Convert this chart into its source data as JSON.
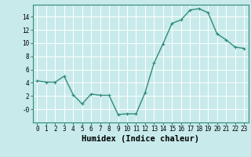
{
  "x": [
    0,
    1,
    2,
    3,
    4,
    5,
    6,
    7,
    8,
    9,
    10,
    11,
    12,
    13,
    14,
    15,
    16,
    17,
    18,
    19,
    20,
    21,
    22,
    23
  ],
  "y": [
    4.3,
    4.1,
    4.1,
    5.0,
    2.2,
    0.8,
    2.3,
    2.1,
    2.1,
    -0.8,
    -0.7,
    -0.7,
    2.5,
    7.0,
    9.9,
    13.0,
    13.5,
    15.0,
    15.2,
    14.6,
    11.4,
    10.5,
    9.4,
    9.2
  ],
  "line_color": "#2e8b7a",
  "marker": "+",
  "markersize": 3,
  "linewidth": 1.0,
  "background_color": "#c8eaea",
  "grid_color": "#ffffff",
  "xlabel": "Humidex (Indice chaleur)",
  "xlabel_fontsize": 7.5,
  "xlim": [
    -0.5,
    23.5
  ],
  "ylim": [
    -2.0,
    15.8
  ],
  "yticks": [
    0,
    2,
    4,
    6,
    8,
    10,
    12,
    14
  ],
  "ytick_labels": [
    "-0",
    "2",
    "4",
    "6",
    "8",
    "10",
    "12",
    "14"
  ],
  "xticks": [
    0,
    1,
    2,
    3,
    4,
    5,
    6,
    7,
    8,
    9,
    10,
    11,
    12,
    13,
    14,
    15,
    16,
    17,
    18,
    19,
    20,
    21,
    22,
    23
  ],
  "xtick_labels": [
    "0",
    "1",
    "2",
    "3",
    "4",
    "5",
    "6",
    "7",
    "8",
    "9",
    "10",
    "11",
    "12",
    "13",
    "14",
    "15",
    "16",
    "17",
    "18",
    "19",
    "20",
    "21",
    "22",
    "23"
  ],
  "tick_fontsize": 5.5,
  "spine_color": "#2e8b7a",
  "markeredgewidth": 0.8
}
